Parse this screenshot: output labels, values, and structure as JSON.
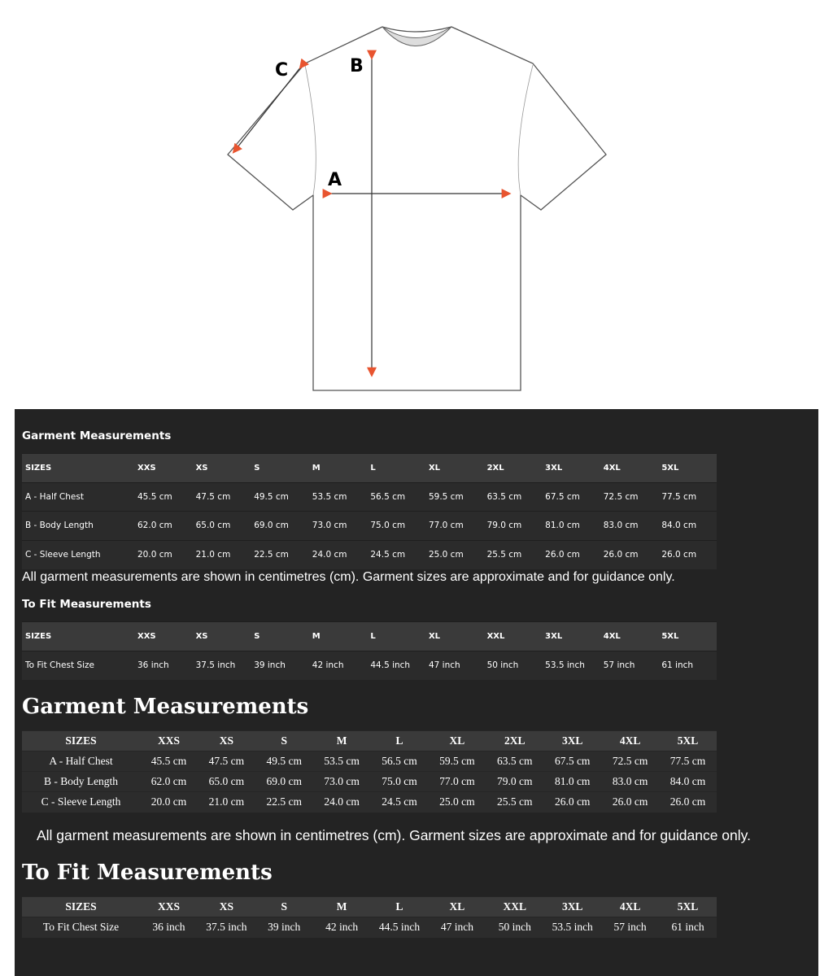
{
  "diagram": {
    "labels": {
      "a": "A",
      "b": "B",
      "c": "C"
    },
    "arrow_color": "#e8542f"
  },
  "garment_sans": {
    "title": "Garment Measurements",
    "headers": [
      "SIZES",
      "XXS",
      "XS",
      "S",
      "M",
      "L",
      "XL",
      "2XL",
      "3XL",
      "4XL",
      "5XL"
    ],
    "rows": [
      [
        "A - Half Chest",
        "45.5 cm",
        "47.5 cm",
        "49.5 cm",
        "53.5 cm",
        "56.5 cm",
        "59.5 cm",
        "63.5 cm",
        "67.5 cm",
        "72.5 cm",
        "77.5 cm"
      ],
      [
        "B - Body Length",
        "62.0 cm",
        "65.0 cm",
        "69.0 cm",
        "73.0 cm",
        "75.0 cm",
        "77.0 cm",
        "79.0 cm",
        "81.0 cm",
        "83.0 cm",
        "84.0 cm"
      ],
      [
        "C - Sleeve Length",
        "20.0 cm",
        "21.0 cm",
        "22.5 cm",
        "24.0 cm",
        "24.5 cm",
        "25.0 cm",
        "25.5 cm",
        "26.0 cm",
        "26.0 cm",
        "26.0 cm"
      ]
    ],
    "note": "All garment measurements are shown in centimetres (cm). Garment sizes are approximate and for guidance only."
  },
  "fit_sans": {
    "title": "To Fit Measurements",
    "headers": [
      "SIZES",
      "XXS",
      "XS",
      "S",
      "M",
      "L",
      "XL",
      "XXL",
      "3XL",
      "4XL",
      "5XL"
    ],
    "rows": [
      [
        "To Fit Chest Size",
        "36 inch",
        "37.5 inch",
        "39 inch",
        "42 inch",
        "44.5 inch",
        "47 inch",
        "50 inch",
        "53.5 inch",
        "57 inch",
        "61 inch"
      ]
    ]
  },
  "garment_serif": {
    "title": "Garment Measurements",
    "headers": [
      "SIZES",
      "XXS",
      "XS",
      "S",
      "M",
      "L",
      "XL",
      "2XL",
      "3XL",
      "4XL",
      "5XL"
    ],
    "rows": [
      [
        "A - Half Chest",
        "45.5 cm",
        "47.5 cm",
        "49.5 cm",
        "53.5 cm",
        "56.5 cm",
        "59.5 cm",
        "63.5 cm",
        "67.5 cm",
        "72.5 cm",
        "77.5 cm"
      ],
      [
        "B - Body Length",
        "62.0 cm",
        "65.0 cm",
        "69.0 cm",
        "73.0 cm",
        "75.0 cm",
        "77.0 cm",
        "79.0 cm",
        "81.0 cm",
        "83.0 cm",
        "84.0 cm"
      ],
      [
        "C - Sleeve Length",
        "20.0 cm",
        "21.0 cm",
        "22.5 cm",
        "24.0 cm",
        "24.5 cm",
        "25.0 cm",
        "25.5 cm",
        "26.0 cm",
        "26.0 cm",
        "26.0 cm"
      ]
    ],
    "note": "All garment measurements are shown in centimetres (cm). Garment sizes are approximate and for guidance only."
  },
  "fit_serif": {
    "title": "To Fit Measurements",
    "headers": [
      "SIZES",
      "XXS",
      "XS",
      "S",
      "M",
      "L",
      "XL",
      "XXL",
      "3XL",
      "4XL",
      "5XL"
    ],
    "rows": [
      [
        "To Fit Chest Size",
        "36 inch",
        "37.5 inch",
        "39 inch",
        "42 inch",
        "44.5 inch",
        "47 inch",
        "50 inch",
        "53.5 inch",
        "57 inch",
        "61 inch"
      ]
    ]
  }
}
